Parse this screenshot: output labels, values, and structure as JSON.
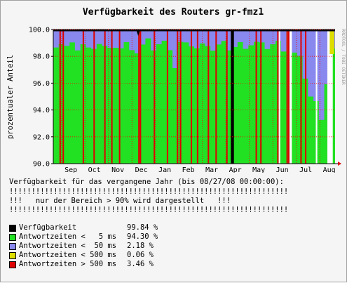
{
  "chart_data": {
    "type": "area",
    "title": "Verfügbarkeit des Routers gr-fmz1",
    "ylabel": "prozentualer Anteil",
    "credit": "RRDTOOL / TOBI OETIKER",
    "ylim": [
      90.0,
      100.0
    ],
    "yticks": [
      "100.0",
      "98.0",
      "96.0",
      "94.0",
      "92.0",
      "90.0"
    ],
    "months": [
      "Sep",
      "Oct",
      "Nov",
      "Dec",
      "Jan",
      "Feb",
      "Mar",
      "Apr",
      "May",
      "Jun",
      "Jul",
      "Aug"
    ],
    "grid": true,
    "x_range_days": 365,
    "green_level_by_week": [
      98.9,
      99.0,
      98.7,
      98.8,
      98.6,
      98.9,
      98.5,
      98.8,
      99.0,
      98.7,
      98.4,
      98.8,
      98.6,
      98.9,
      98.7,
      98.3,
      98.8,
      99.1,
      98.6,
      98.9,
      99.0,
      98.7,
      97.2,
      99.0,
      98.8,
      98.9,
      98.6,
      98.8,
      99.0,
      98.5,
      98.8,
      98.9,
      98.6,
      98.7,
      98.9,
      98.8,
      98.9,
      99.0,
      98.8,
      98.7,
      98.9,
      99.0,
      98.6,
      98.5,
      98.2,
      97.8,
      96.5,
      95.0,
      94.5,
      93.5,
      96.0,
      98.5
    ],
    "red_spike_days": [
      8,
      12,
      38,
      52,
      66,
      75,
      85,
      110,
      112,
      130,
      147,
      160,
      164,
      178,
      186,
      200,
      210,
      224,
      262,
      268,
      290,
      302,
      304,
      320,
      326
    ],
    "black_outage_days": [
      [
        230,
        234
      ]
    ],
    "white_gap_days": [
      [
        292,
        294
      ],
      [
        306,
        309
      ],
      [
        340,
        342
      ],
      [
        355,
        362
      ]
    ],
    "yellow_spike_days": [
      [
        302,
        304
      ],
      [
        358,
        364
      ]
    ]
  },
  "info": {
    "line1": "Verfügbarkeit für das vergangene Jahr (bis 08/27/08 00:00:00):",
    "line2": "!!!!!!!!!!!!!!!!!!!!!!!!!!!!!!!!!!!!!!!!!!!!!!!!!!!!!!!!!!!!!!!",
    "line3": "!!!   nur der Bereich > 90% wird dargestellt   !!!",
    "line4": "!!!!!!!!!!!!!!!!!!!!!!!!!!!!!!!!!!!!!!!!!!!!!!!!!!!!!!!!!!!!!!!"
  },
  "legend": [
    {
      "label": "Verfügbarkeit",
      "value": "99.84 %",
      "color": "#000000"
    },
    {
      "label": "Antwortzeiten <   5 ms",
      "value": "94.30 %",
      "color": "#22e022"
    },
    {
      "label": "Antwortzeiten <  50 ms",
      "value": "2.18 %",
      "color": "#8888ee"
    },
    {
      "label": "Antwortzeiten < 500 ms",
      "value": "0.06 %",
      "color": "#dddd00"
    },
    {
      "label": "Antwortzeiten > 500 ms",
      "value": "3.46 %",
      "color": "#dd0000"
    }
  ],
  "colors": {
    "background": "#f5f5f5",
    "plot": "#ffffff",
    "green": "#22e022",
    "blue": "#8888ee",
    "yellow": "#dddd00",
    "red": "#dd0000",
    "black": "#000000",
    "grid": "#ff0000"
  }
}
